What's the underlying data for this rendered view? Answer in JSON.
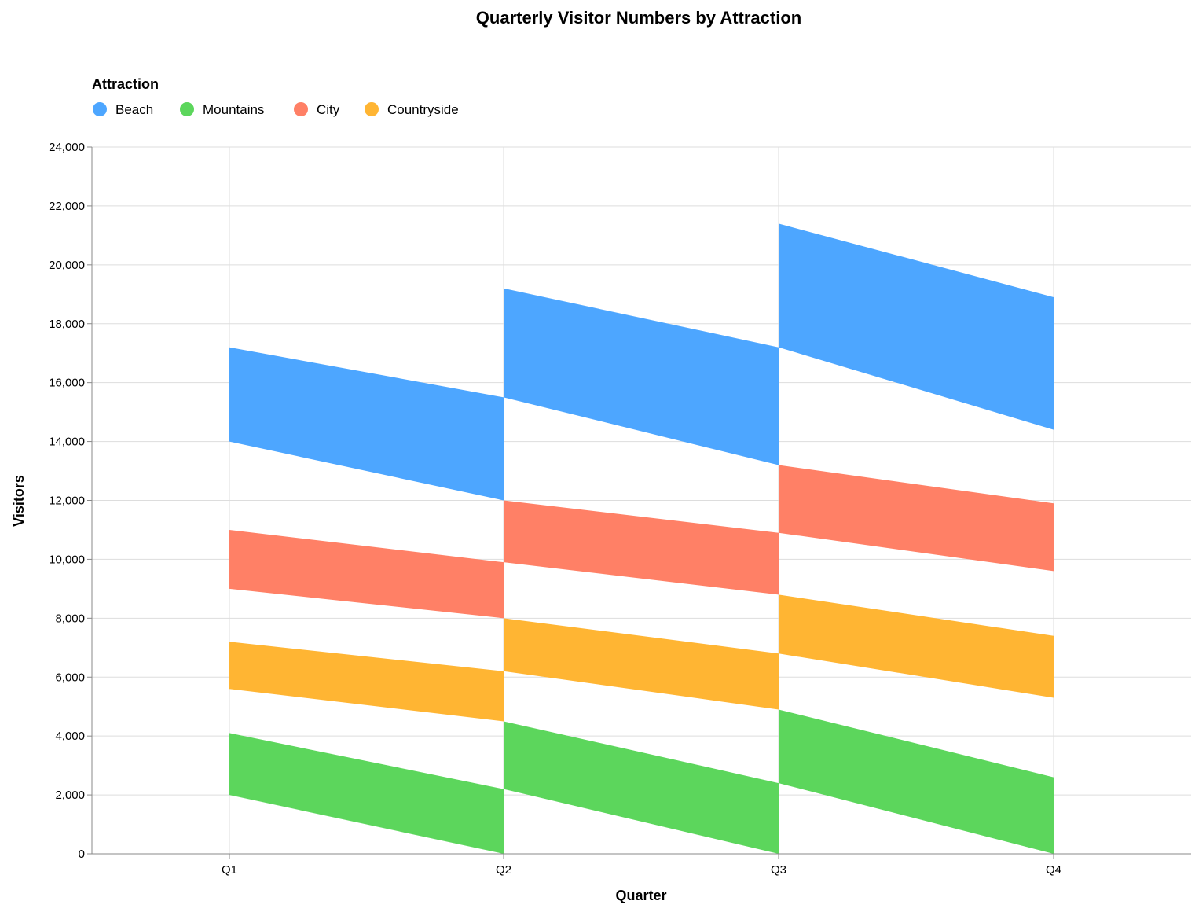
{
  "chart_data": {
    "type": "area",
    "title": "Quarterly Visitor Numbers by Attraction",
    "xlabel": "Quarter",
    "ylabel": "Visitors",
    "categories": [
      "Q1",
      "Q2",
      "Q3",
      "Q4"
    ],
    "ylim": [
      0,
      24000
    ],
    "yticks": [
      0,
      2000,
      4000,
      6000,
      8000,
      10000,
      12000,
      14000,
      16000,
      18000,
      20000,
      22000,
      24000
    ],
    "yticks_labels": [
      "0",
      "2,000",
      "4,000",
      "6,000",
      "8,000",
      "10,000",
      "12,000",
      "14,000",
      "16,000",
      "18,000",
      "20,000",
      "22,000",
      "24,000"
    ],
    "grid": true,
    "legend": {
      "title": "Attraction",
      "placement": "top-left",
      "items": [
        "Beach",
        "Mountains",
        "City",
        "Countryside"
      ]
    },
    "series": [
      {
        "name": "Beach",
        "color": "#4da6ff",
        "bands": [
          {
            "x0": "Q1",
            "x1": "Q2",
            "start_low": 14000,
            "start_high": 17200,
            "end_low": 12000,
            "end_high": 15500
          },
          {
            "x0": "Q2",
            "x1": "Q3",
            "start_low": 15500,
            "start_high": 19200,
            "end_low": 13200,
            "end_high": 17200
          },
          {
            "x0": "Q3",
            "x1": "Q4",
            "start_low": 17200,
            "start_high": 21400,
            "end_low": 14400,
            "end_high": 18900
          }
        ]
      },
      {
        "name": "Mountains",
        "color": "#5cd65c",
        "bands": [
          {
            "x0": "Q1",
            "x1": "Q2",
            "start_low": 2000,
            "start_high": 4100,
            "end_low": 0,
            "end_high": 2200
          },
          {
            "x0": "Q2",
            "x1": "Q3",
            "start_low": 2200,
            "start_high": 4500,
            "end_low": 0,
            "end_high": 2400
          },
          {
            "x0": "Q3",
            "x1": "Q4",
            "start_low": 2400,
            "start_high": 4900,
            "end_low": 0,
            "end_high": 2600
          }
        ]
      },
      {
        "name": "City",
        "color": "#ff8066",
        "bands": [
          {
            "x0": "Q1",
            "x1": "Q2",
            "start_low": 9000,
            "start_high": 11000,
            "end_low": 8000,
            "end_high": 9900
          },
          {
            "x0": "Q2",
            "x1": "Q3",
            "start_low": 9900,
            "start_high": 12000,
            "end_low": 8800,
            "end_high": 10900
          },
          {
            "x0": "Q3",
            "x1": "Q4",
            "start_low": 10900,
            "start_high": 13200,
            "end_low": 9600,
            "end_high": 11900
          }
        ]
      },
      {
        "name": "Countryside",
        "color": "#ffb533",
        "bands": [
          {
            "x0": "Q1",
            "x1": "Q2",
            "start_low": 5600,
            "start_high": 7200,
            "end_low": 4500,
            "end_high": 6200
          },
          {
            "x0": "Q2",
            "x1": "Q3",
            "start_low": 6200,
            "start_high": 8000,
            "end_low": 4900,
            "end_high": 6800
          },
          {
            "x0": "Q3",
            "x1": "Q4",
            "start_low": 6800,
            "start_high": 8800,
            "end_low": 5300,
            "end_high": 7400
          }
        ]
      }
    ]
  }
}
